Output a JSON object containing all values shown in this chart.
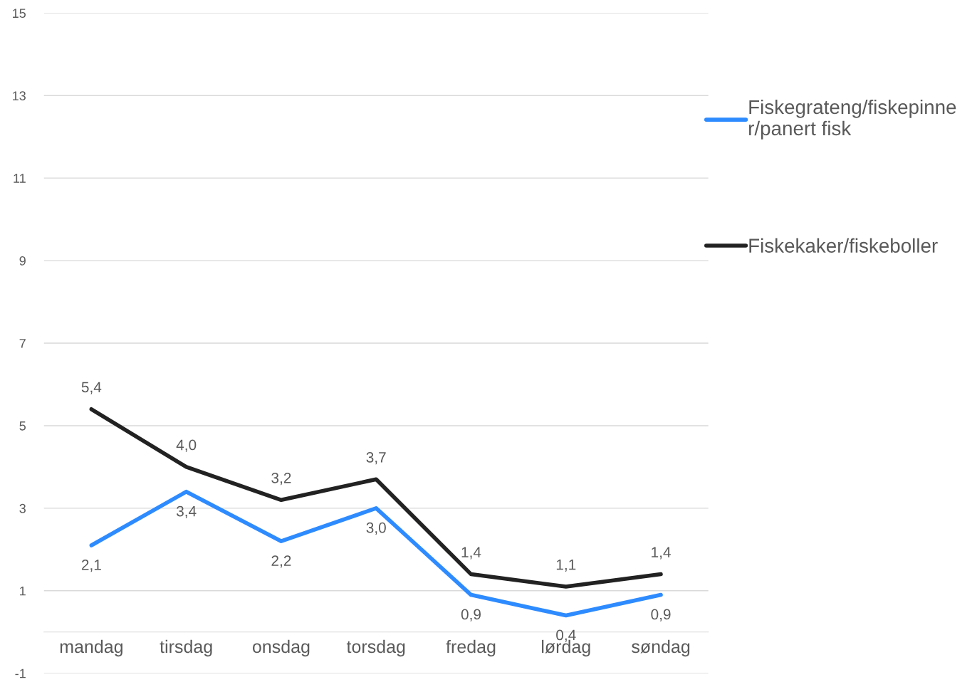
{
  "chart_data": {
    "type": "line",
    "categories": [
      "mandag",
      "tirsdag",
      "onsdag",
      "torsdag",
      "fredag",
      "lørdag",
      "søndag"
    ],
    "series": [
      {
        "name": "Fiskegrateng/fiskepinner/panert fisk",
        "color": "#2e8bff",
        "values": [
          2.1,
          3.4,
          2.2,
          3.0,
          0.9,
          0.4,
          0.9
        ],
        "value_labels": [
          "2,1",
          "3,4",
          "2,2",
          "3,0",
          "0,9",
          "0,4",
          "0,9"
        ]
      },
      {
        "name": "Fiskekaker/fiskeboller",
        "color": "#222222",
        "values": [
          5.4,
          4.0,
          3.2,
          3.7,
          1.4,
          1.1,
          1.4
        ],
        "value_labels": [
          "5,4",
          "4,0",
          "3,2",
          "3,7",
          "1,4",
          "1,1",
          "1,4"
        ]
      }
    ],
    "ylim": [
      -1,
      15
    ],
    "yticks": [
      -1,
      1,
      3,
      5,
      7,
      9,
      11,
      13,
      15
    ],
    "grid": "y",
    "legend": "right",
    "marker": "none",
    "line_style": "solid"
  }
}
